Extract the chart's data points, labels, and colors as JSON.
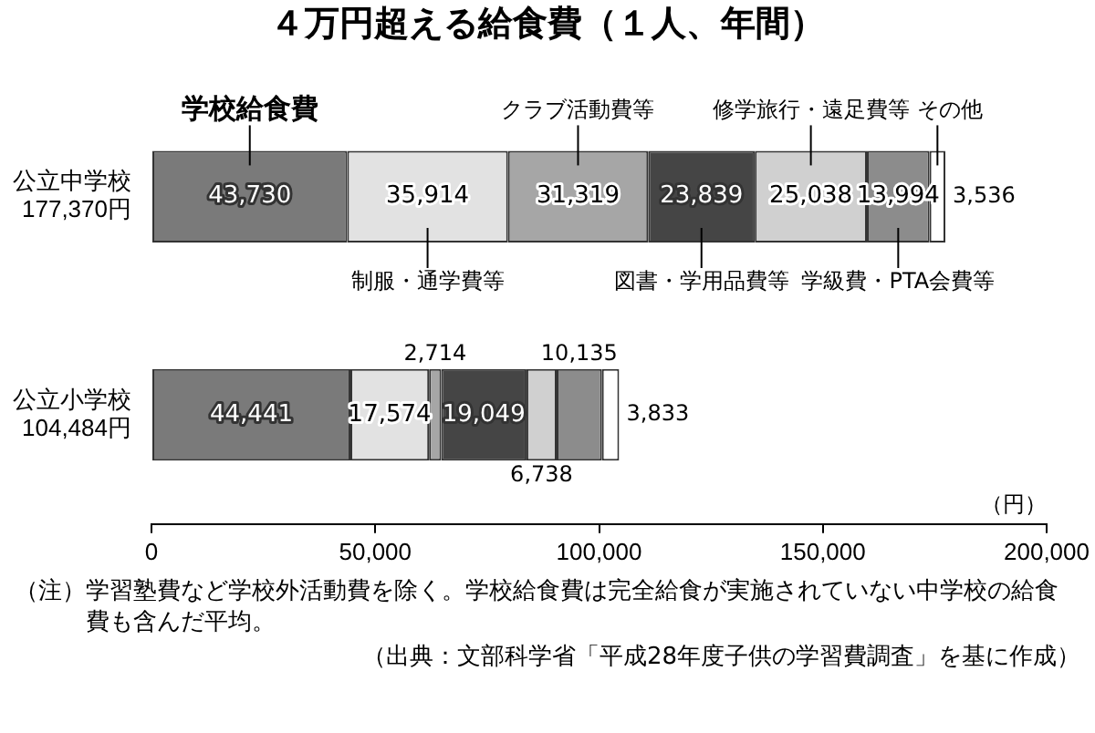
{
  "chart_data": {
    "type": "bar",
    "orientation": "horizontal",
    "stacked": true,
    "title": "４万円超える給食費（１人、年間）",
    "categories": [
      "公立中学校\n177,370円",
      "公立小学校\n104,484円"
    ],
    "series": [
      {
        "name": "学校給食費",
        "color": "#7a7a7a",
        "values": [
          43730,
          44441
        ],
        "value_labels": [
          "43,730",
          "44,441"
        ]
      },
      {
        "name": "制服・通学費等",
        "color": "#e2e2e2",
        "values": [
          35914,
          17574
        ],
        "value_labels": [
          "35,914",
          "17,574"
        ]
      },
      {
        "name": "クラブ活動費等",
        "color": "#a6a6a6",
        "values": [
          31319,
          2714
        ],
        "value_labels": [
          "31,319",
          "2,714"
        ]
      },
      {
        "name": "図書・学用品費等",
        "color": "#454545",
        "values": [
          23839,
          19049
        ],
        "value_labels": [
          "23,839",
          "19,049"
        ]
      },
      {
        "name": "修学旅行・遠足費等",
        "color": "#d0d0d0",
        "values": [
          25038,
          6738
        ],
        "value_labels": [
          "25,038",
          "6,738"
        ]
      },
      {
        "name": "学級費・PTA会費等",
        "color": "#8c8c8c",
        "values": [
          13994,
          10135
        ],
        "value_labels": [
          "13,994",
          "10,135"
        ]
      },
      {
        "name": "その他",
        "color": "#ffffff",
        "values": [
          3536,
          3833
        ],
        "value_labels": [
          "3,536",
          "3,833"
        ]
      }
    ],
    "xlim": [
      0,
      200000
    ],
    "xticks": [
      {
        "value": 0,
        "label": "0"
      },
      {
        "value": 50000,
        "label": "50,000"
      },
      {
        "value": 100000,
        "label": "100,000"
      },
      {
        "value": 150000,
        "label": "150,000"
      },
      {
        "value": 200000,
        "label": "200,000"
      }
    ],
    "xlabel": "（円）",
    "legend": false,
    "annotations": [
      "（注）学習塾費など学校外活動費を除く。学校給食費は完全給食が実施されていない中学校の給食費も含んだ平均。",
      "（出典：文部科学省「平成28年度子供の学習費調査」を基に作成）"
    ]
  }
}
